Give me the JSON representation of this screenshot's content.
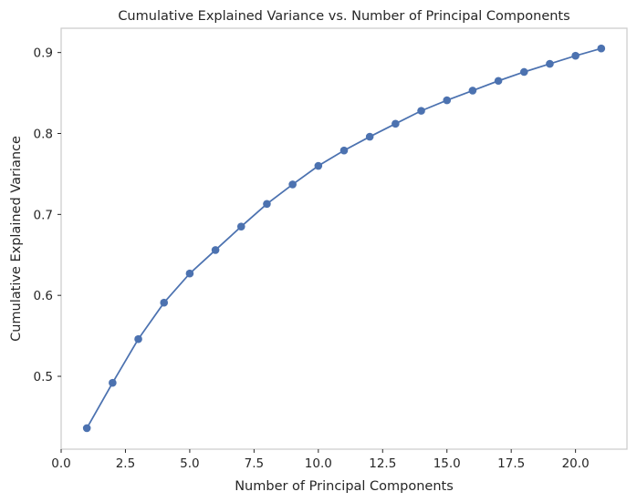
{
  "chart_data": {
    "type": "line",
    "title": "Cumulative Explained Variance vs. Number of Principal Components",
    "xlabel": "Number of Principal Components",
    "ylabel": "Cumulative Explained Variance",
    "xlim": [
      0.0,
      22.0
    ],
    "ylim": [
      0.41,
      0.93
    ],
    "xticks": [
      0.0,
      2.5,
      5.0,
      7.5,
      10.0,
      12.5,
      15.0,
      17.5,
      20.0
    ],
    "yticks": [
      0.5,
      0.6,
      0.7,
      0.8,
      0.9
    ],
    "grid": false,
    "legend": "none",
    "color": "#4c72b0",
    "markers": "circle",
    "series": [
      {
        "x": [
          1,
          2,
          3,
          4,
          5,
          6,
          7,
          8,
          9,
          10,
          11,
          12,
          13,
          14,
          15,
          16,
          17,
          18,
          19,
          20,
          21
        ],
        "values": [
          0.436,
          0.492,
          0.546,
          0.591,
          0.627,
          0.656,
          0.685,
          0.713,
          0.737,
          0.76,
          0.779,
          0.796,
          0.812,
          0.828,
          0.841,
          0.853,
          0.865,
          0.876,
          0.886,
          0.896,
          0.905
        ]
      }
    ]
  }
}
